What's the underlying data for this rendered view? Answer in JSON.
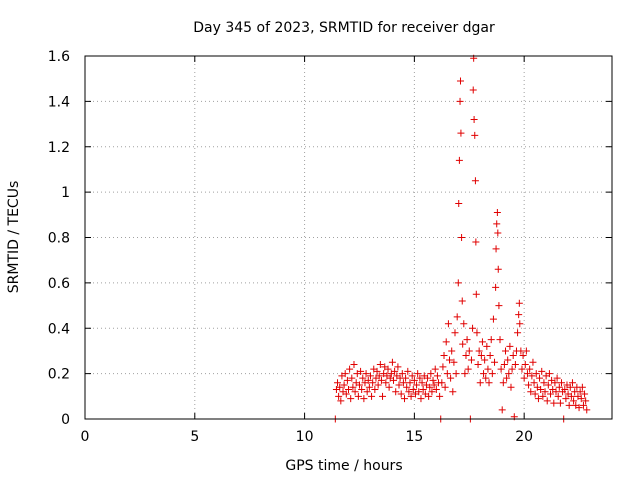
{
  "chart_data": {
    "type": "scatter",
    "title": "Day 345 of 2023, SRMTID for receiver dgar",
    "xlabel": "GPS time / hours",
    "ylabel": "SRMTID / TECUs",
    "xlim": [
      0,
      24
    ],
    "ylim": [
      0,
      1.6
    ],
    "x_ticks": [
      0,
      5,
      10,
      15,
      20
    ],
    "x_tick_labels": [
      "0",
      "5",
      "10",
      "15",
      "20"
    ],
    "y_ticks": [
      0,
      0.2,
      0.4,
      0.6,
      0.8,
      1.0,
      1.2,
      1.4,
      1.6
    ],
    "y_tick_labels": [
      "0",
      "0.2",
      "0.4",
      "0.6",
      "0.8",
      "1",
      "1.2",
      "1.4",
      "1.6"
    ],
    "grid": true,
    "marker": "plus",
    "marker_color": "#e00000",
    "series": [
      {
        "name": "SRMTID",
        "points": [
          [
            11.4,
            0.0
          ],
          [
            11.45,
            0.13
          ],
          [
            11.5,
            0.16
          ],
          [
            11.55,
            0.1
          ],
          [
            11.6,
            0.14
          ],
          [
            11.65,
            0.08
          ],
          [
            11.7,
            0.19
          ],
          [
            11.75,
            0.12
          ],
          [
            11.8,
            0.15
          ],
          [
            11.85,
            0.2
          ],
          [
            11.9,
            0.11
          ],
          [
            11.95,
            0.17
          ],
          [
            12.0,
            0.13
          ],
          [
            12.05,
            0.22
          ],
          [
            12.1,
            0.09
          ],
          [
            12.15,
            0.18
          ],
          [
            12.2,
            0.14
          ],
          [
            12.25,
            0.24
          ],
          [
            12.3,
            0.12
          ],
          [
            12.35,
            0.16
          ],
          [
            12.4,
            0.2
          ],
          [
            12.45,
            0.1
          ],
          [
            12.5,
            0.15
          ],
          [
            12.55,
            0.21
          ],
          [
            12.6,
            0.13
          ],
          [
            12.65,
            0.18
          ],
          [
            12.7,
            0.09
          ],
          [
            12.75,
            0.16
          ],
          [
            12.8,
            0.2
          ],
          [
            12.85,
            0.12
          ],
          [
            12.9,
            0.17
          ],
          [
            12.95,
            0.14
          ],
          [
            13.0,
            0.19
          ],
          [
            13.05,
            0.1
          ],
          [
            13.1,
            0.16
          ],
          [
            13.15,
            0.22
          ],
          [
            13.2,
            0.13
          ],
          [
            13.25,
            0.18
          ],
          [
            13.3,
            0.21
          ],
          [
            13.35,
            0.15
          ],
          [
            13.4,
            0.19
          ],
          [
            13.45,
            0.24
          ],
          [
            13.5,
            0.17
          ],
          [
            13.55,
            0.1
          ],
          [
            13.6,
            0.2
          ],
          [
            13.65,
            0.23
          ],
          [
            13.7,
            0.16
          ],
          [
            13.75,
            0.19
          ],
          [
            13.8,
            0.22
          ],
          [
            13.85,
            0.14
          ],
          [
            13.9,
            0.18
          ],
          [
            13.95,
            0.2
          ],
          [
            14.0,
            0.25
          ],
          [
            14.05,
            0.17
          ],
          [
            14.1,
            0.21
          ],
          [
            14.15,
            0.12
          ],
          [
            14.2,
            0.19
          ],
          [
            14.25,
            0.23
          ],
          [
            14.3,
            0.15
          ],
          [
            14.35,
            0.18
          ],
          [
            14.4,
            0.11
          ],
          [
            14.45,
            0.2
          ],
          [
            14.5,
            0.16
          ],
          [
            14.55,
            0.09
          ],
          [
            14.6,
            0.18
          ],
          [
            14.65,
            0.14
          ],
          [
            14.7,
            0.21
          ],
          [
            14.75,
            0.12
          ],
          [
            14.8,
            0.16
          ],
          [
            14.85,
            0.1
          ],
          [
            14.9,
            0.19
          ],
          [
            14.95,
            0.13
          ],
          [
            15.0,
            0.17
          ],
          [
            15.05,
            0.11
          ],
          [
            15.1,
            0.15
          ],
          [
            15.15,
            0.2
          ],
          [
            15.2,
            0.12
          ],
          [
            15.25,
            0.18
          ],
          [
            15.3,
            0.09
          ],
          [
            15.35,
            0.16
          ],
          [
            15.4,
            0.13
          ],
          [
            15.45,
            0.19
          ],
          [
            15.5,
            0.11
          ],
          [
            15.55,
            0.15
          ],
          [
            15.6,
            0.18
          ],
          [
            15.65,
            0.1
          ],
          [
            15.7,
            0.14
          ],
          [
            15.75,
            0.2
          ],
          [
            15.8,
            0.12
          ],
          [
            15.85,
            0.17
          ],
          [
            15.9,
            0.15
          ],
          [
            15.95,
            0.22
          ],
          [
            16.0,
            0.13
          ],
          [
            16.05,
            0.19
          ],
          [
            16.1,
            0.16
          ],
          [
            16.15,
            0.1
          ],
          [
            16.2,
            0.0
          ],
          [
            16.25,
            0.16
          ],
          [
            16.3,
            0.23
          ],
          [
            16.35,
            0.28
          ],
          [
            16.4,
            0.14
          ],
          [
            16.45,
            0.34
          ],
          [
            16.5,
            0.2
          ],
          [
            16.55,
            0.42
          ],
          [
            16.6,
            0.26
          ],
          [
            16.65,
            0.18
          ],
          [
            16.7,
            0.3
          ],
          [
            16.75,
            0.12
          ],
          [
            16.8,
            0.25
          ],
          [
            16.85,
            0.38
          ],
          [
            16.9,
            0.2
          ],
          [
            16.95,
            0.45
          ],
          [
            17.0,
            0.6
          ],
          [
            17.02,
            0.95
          ],
          [
            17.05,
            1.14
          ],
          [
            17.08,
            1.4
          ],
          [
            17.1,
            1.49
          ],
          [
            17.12,
            1.26
          ],
          [
            17.15,
            0.8
          ],
          [
            17.18,
            0.52
          ],
          [
            17.2,
            0.33
          ],
          [
            17.25,
            0.42
          ],
          [
            17.3,
            0.2
          ],
          [
            17.35,
            0.28
          ],
          [
            17.4,
            0.35
          ],
          [
            17.45,
            0.22
          ],
          [
            17.5,
            0.3
          ],
          [
            17.55,
            0.0
          ],
          [
            17.6,
            0.26
          ],
          [
            17.65,
            0.4
          ],
          [
            17.68,
            1.45
          ],
          [
            17.7,
            1.59
          ],
          [
            17.72,
            1.32
          ],
          [
            17.75,
            1.25
          ],
          [
            17.78,
            1.05
          ],
          [
            17.8,
            0.78
          ],
          [
            17.82,
            0.55
          ],
          [
            17.85,
            0.38
          ],
          [
            17.9,
            0.24
          ],
          [
            17.95,
            0.3
          ],
          [
            18.0,
            0.16
          ],
          [
            18.05,
            0.28
          ],
          [
            18.1,
            0.34
          ],
          [
            18.15,
            0.2
          ],
          [
            18.2,
            0.26
          ],
          [
            18.25,
            0.18
          ],
          [
            18.3,
            0.32
          ],
          [
            18.35,
            0.22
          ],
          [
            18.4,
            0.16
          ],
          [
            18.45,
            0.28
          ],
          [
            18.5,
            0.35
          ],
          [
            18.55,
            0.2
          ],
          [
            18.6,
            0.44
          ],
          [
            18.65,
            0.25
          ],
          [
            18.7,
            0.58
          ],
          [
            18.72,
            0.75
          ],
          [
            18.75,
            0.86
          ],
          [
            18.78,
            0.91
          ],
          [
            18.8,
            0.82
          ],
          [
            18.82,
            0.66
          ],
          [
            18.85,
            0.5
          ],
          [
            18.9,
            0.35
          ],
          [
            18.95,
            0.22
          ],
          [
            19.0,
            0.04
          ],
          [
            19.05,
            0.16
          ],
          [
            19.1,
            0.24
          ],
          [
            19.15,
            0.3
          ],
          [
            19.2,
            0.18
          ],
          [
            19.25,
            0.26
          ],
          [
            19.3,
            0.2
          ],
          [
            19.35,
            0.32
          ],
          [
            19.4,
            0.14
          ],
          [
            19.45,
            0.22
          ],
          [
            19.5,
            0.28
          ],
          [
            19.55,
            0.01
          ],
          [
            19.6,
            0.24
          ],
          [
            19.65,
            0.3
          ],
          [
            19.7,
            0.38
          ],
          [
            19.75,
            0.46
          ],
          [
            19.78,
            0.51
          ],
          [
            19.8,
            0.42
          ],
          [
            19.85,
            0.3
          ],
          [
            19.9,
            0.22
          ],
          [
            19.95,
            0.28
          ],
          [
            20.0,
            0.18
          ],
          [
            20.05,
            0.24
          ],
          [
            20.1,
            0.3
          ],
          [
            20.15,
            0.2
          ],
          [
            20.2,
            0.15
          ],
          [
            20.25,
            0.22
          ],
          [
            20.3,
            0.12
          ],
          [
            20.35,
            0.19
          ],
          [
            20.4,
            0.25
          ],
          [
            20.45,
            0.16
          ],
          [
            20.5,
            0.11
          ],
          [
            20.55,
            0.2
          ],
          [
            20.6,
            0.14
          ],
          [
            20.65,
            0.09
          ],
          [
            20.7,
            0.18
          ],
          [
            20.75,
            0.13
          ],
          [
            20.8,
            0.21
          ],
          [
            20.85,
            0.1
          ],
          [
            20.9,
            0.16
          ],
          [
            20.95,
            0.12
          ],
          [
            21.0,
            0.19
          ],
          [
            21.05,
            0.08
          ],
          [
            21.1,
            0.15
          ],
          [
            21.15,
            0.2
          ],
          [
            21.2,
            0.11
          ],
          [
            21.25,
            0.17
          ],
          [
            21.3,
            0.13
          ],
          [
            21.35,
            0.07
          ],
          [
            21.4,
            0.16
          ],
          [
            21.45,
            0.12
          ],
          [
            21.5,
            0.18
          ],
          [
            21.55,
            0.1
          ],
          [
            21.6,
            0.14
          ],
          [
            21.65,
            0.07
          ],
          [
            21.7,
            0.16
          ],
          [
            21.75,
            0.12
          ],
          [
            21.8,
            0.0
          ],
          [
            21.85,
            0.13
          ],
          [
            21.9,
            0.09
          ],
          [
            21.95,
            0.15
          ],
          [
            22.0,
            0.11
          ],
          [
            22.05,
            0.06
          ],
          [
            22.1,
            0.14
          ],
          [
            22.15,
            0.1
          ],
          [
            22.2,
            0.16
          ],
          [
            22.25,
            0.08
          ],
          [
            22.3,
            0.12
          ],
          [
            22.35,
            0.06
          ],
          [
            22.4,
            0.14
          ],
          [
            22.45,
            0.1
          ],
          [
            22.5,
            0.05
          ],
          [
            22.55,
            0.12
          ],
          [
            22.6,
            0.09
          ],
          [
            22.65,
            0.14
          ],
          [
            22.7,
            0.06
          ],
          [
            22.75,
            0.11
          ],
          [
            22.8,
            0.08
          ],
          [
            22.85,
            0.04
          ]
        ]
      }
    ]
  }
}
